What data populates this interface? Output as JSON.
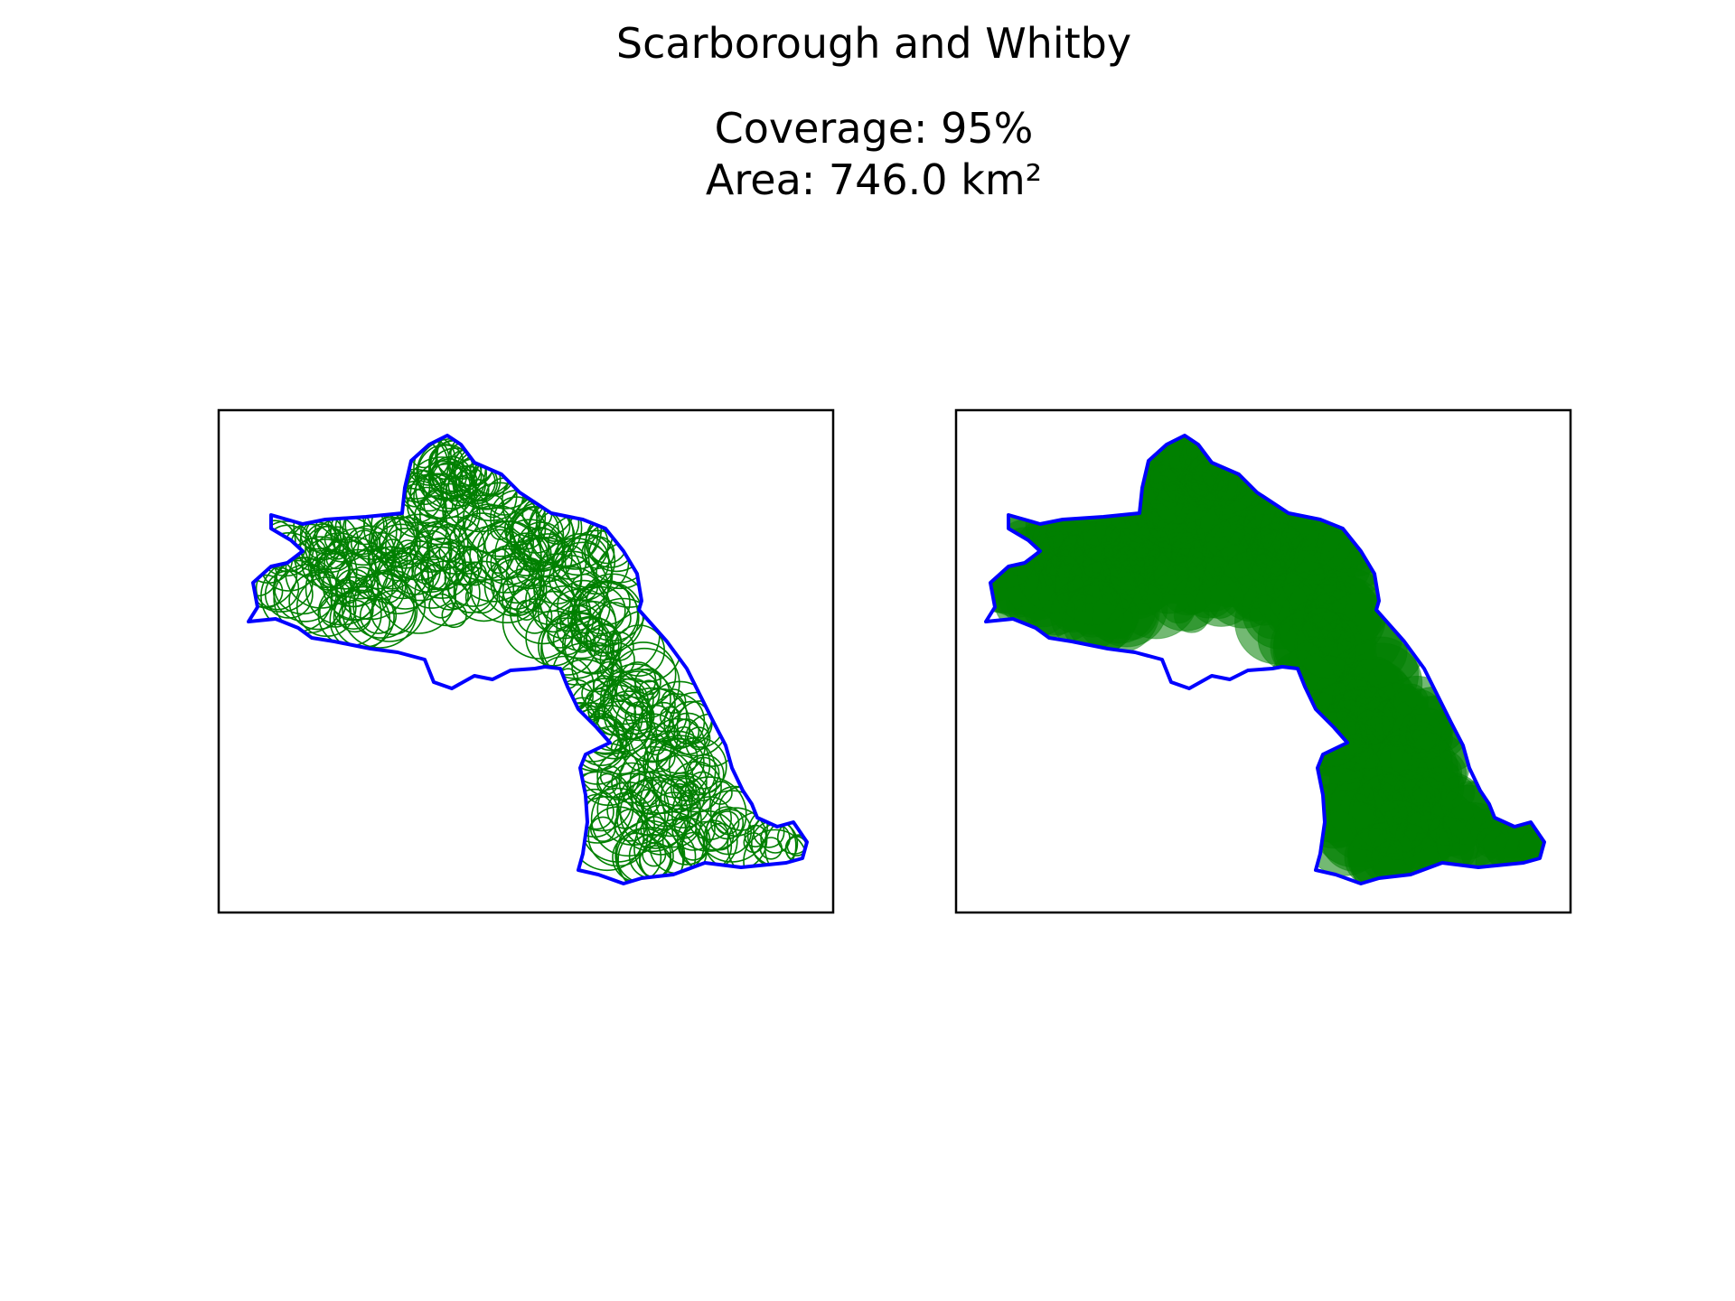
{
  "title": "Scarborough and Whitby",
  "subtitle": {
    "coverage": "Coverage: 95%",
    "area": "Area: 746.0 km²"
  },
  "colors": {
    "boundary": "#0000ff",
    "circle": "#008000",
    "axes_frame": "#000000",
    "background": "#ffffff"
  },
  "chart_data": [
    {
      "type": "map",
      "panel": "left",
      "style": "circle-outlines",
      "boundary_color": "#0000ff",
      "circle_color": "#008000",
      "grid": false,
      "axis_ticks": false
    },
    {
      "type": "map",
      "panel": "right",
      "style": "filled-circles",
      "boundary_color": "#0000ff",
      "circle_color": "#008000",
      "grid": false,
      "axis_ticks": false
    }
  ]
}
